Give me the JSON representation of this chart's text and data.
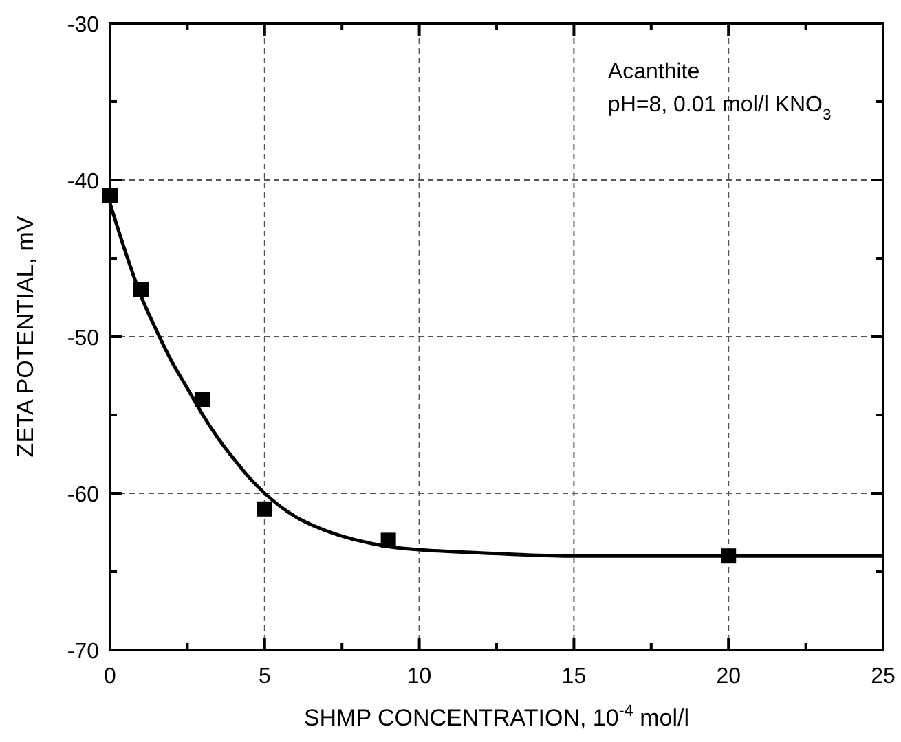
{
  "chart_data": {
    "type": "scatter",
    "xlabel": "SHMP CONCENTRATION, 10$^{-4}$ mol/l",
    "ylabel": "ZETA POTENTIAL, mV",
    "annotations": [
      "Acanthite",
      "pH=8, 0.01 mol/l KNO$_{3}$"
    ],
    "xlim": [
      0,
      25
    ],
    "ylim": [
      -70,
      -30
    ],
    "xticks": [
      0,
      {
        "value": 2.5,
        "label": null
      },
      5,
      {
        "value": 7.5,
        "label": null
      },
      10,
      {
        "value": 12.5,
        "label": null
      },
      15,
      {
        "value": 17.5,
        "label": null
      },
      20,
      {
        "value": 22.5,
        "label": null
      },
      25
    ],
    "yticks": [
      -70,
      {
        "value": -65,
        "label": null
      },
      -60,
      {
        "value": -55,
        "label": null
      },
      -50,
      {
        "value": -45,
        "label": null
      },
      -40,
      {
        "value": -35,
        "label": null
      },
      -30
    ],
    "grid": true,
    "marker": "square",
    "series": [
      {
        "color": "#000000",
        "x": [
          0,
          1,
          3,
          5,
          9,
          20
        ],
        "values": [
          -41,
          -47,
          -54,
          -61,
          -63,
          -64
        ]
      },
      {
        "type": "line",
        "color": "#000000",
        "marker": "none",
        "line_style": "solid",
        "x": [
          0,
          0.5,
          1,
          1.5,
          2,
          2.5,
          3,
          3.5,
          4,
          4.5,
          5,
          6,
          7,
          8,
          9,
          10,
          12,
          15,
          20,
          25
        ],
        "values": [
          -41.5,
          -44.6,
          -47.4,
          -49.6,
          -51.6,
          -53.3,
          -55,
          -56.5,
          -57.8,
          -59,
          -60,
          -61.5,
          -62.4,
          -63,
          -63.4,
          -63.6,
          -63.8,
          -64,
          -64,
          -64
        ]
      }
    ]
  }
}
